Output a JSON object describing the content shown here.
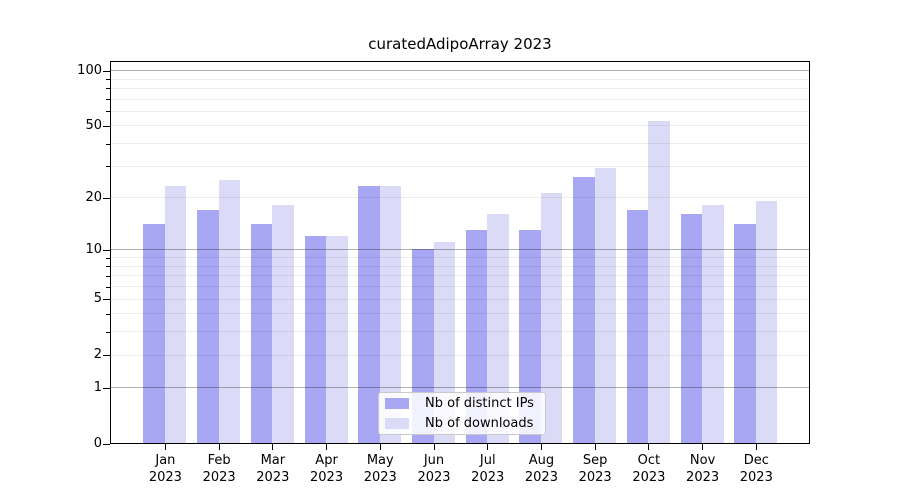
{
  "chart_data": {
    "type": "bar",
    "title": "curatedAdipoArray 2023",
    "x_year": "2023",
    "categories": [
      "Jan",
      "Feb",
      "Mar",
      "Apr",
      "May",
      "Jun",
      "Jul",
      "Aug",
      "Sep",
      "Oct",
      "Nov",
      "Dec"
    ],
    "series": [
      {
        "name": "Nb of distinct IPs",
        "color": "#a7a7f3",
        "values": [
          14,
          17,
          14,
          12,
          23,
          10,
          13,
          13,
          26,
          17,
          16,
          14
        ]
      },
      {
        "name": "Nb of downloads",
        "color": "#dbdbf8",
        "values": [
          23,
          25,
          18,
          12,
          23,
          11,
          16,
          21,
          29,
          53,
          18,
          19
        ]
      }
    ],
    "y_axis": {
      "scale": "log1p",
      "tick_values": [
        0,
        1,
        2,
        5,
        10,
        20,
        50,
        100
      ],
      "major_gridlines": [
        1,
        10,
        100
      ],
      "minor_gridlines": [
        2,
        3,
        4,
        5,
        6,
        7,
        8,
        9,
        20,
        30,
        40,
        50,
        60,
        70,
        80,
        90
      ],
      "range_min": 0,
      "range_max": 113
    },
    "grid": true,
    "legend_position": "lower center"
  }
}
